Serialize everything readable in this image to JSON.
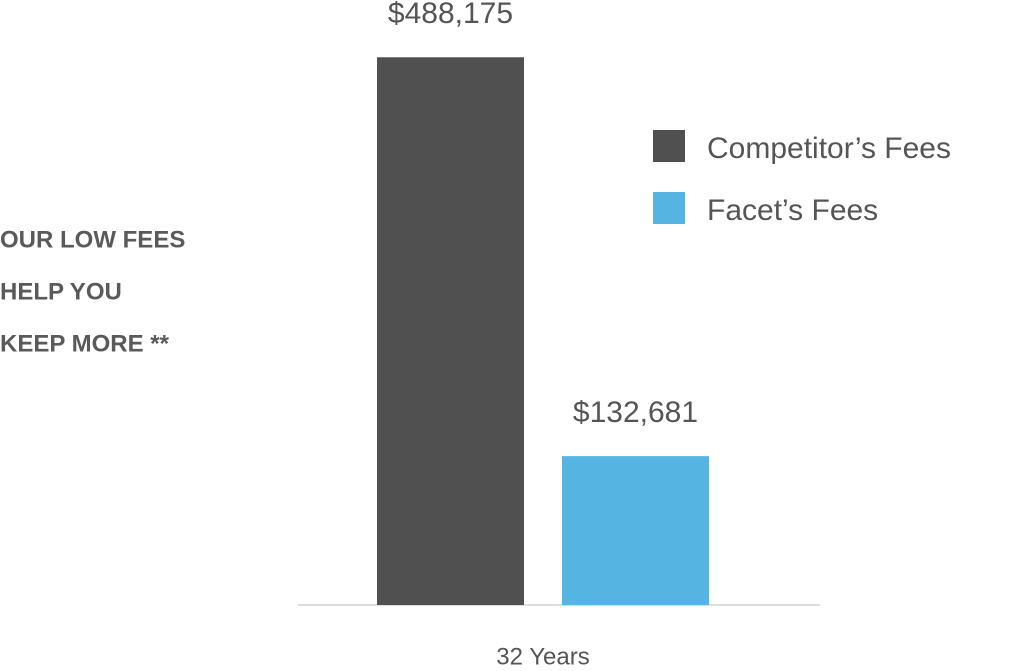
{
  "chart_data": {
    "type": "bar",
    "annotation": [
      "OUR LOW FEES",
      "HELP YOU",
      "KEEP MORE **"
    ],
    "categories": [
      "32 Years"
    ],
    "series": [
      {
        "name": "Competitor’s Fees",
        "color": "#505050",
        "values": [
          488175
        ],
        "value_labels": [
          "$488,175"
        ]
      },
      {
        "name": "Facet’s Fees",
        "color": "#56b4e3",
        "values": [
          132681
        ],
        "value_labels": [
          "$132,681"
        ]
      }
    ],
    "ylim": [
      0,
      500000
    ],
    "grid": false,
    "legend": "top-right"
  }
}
